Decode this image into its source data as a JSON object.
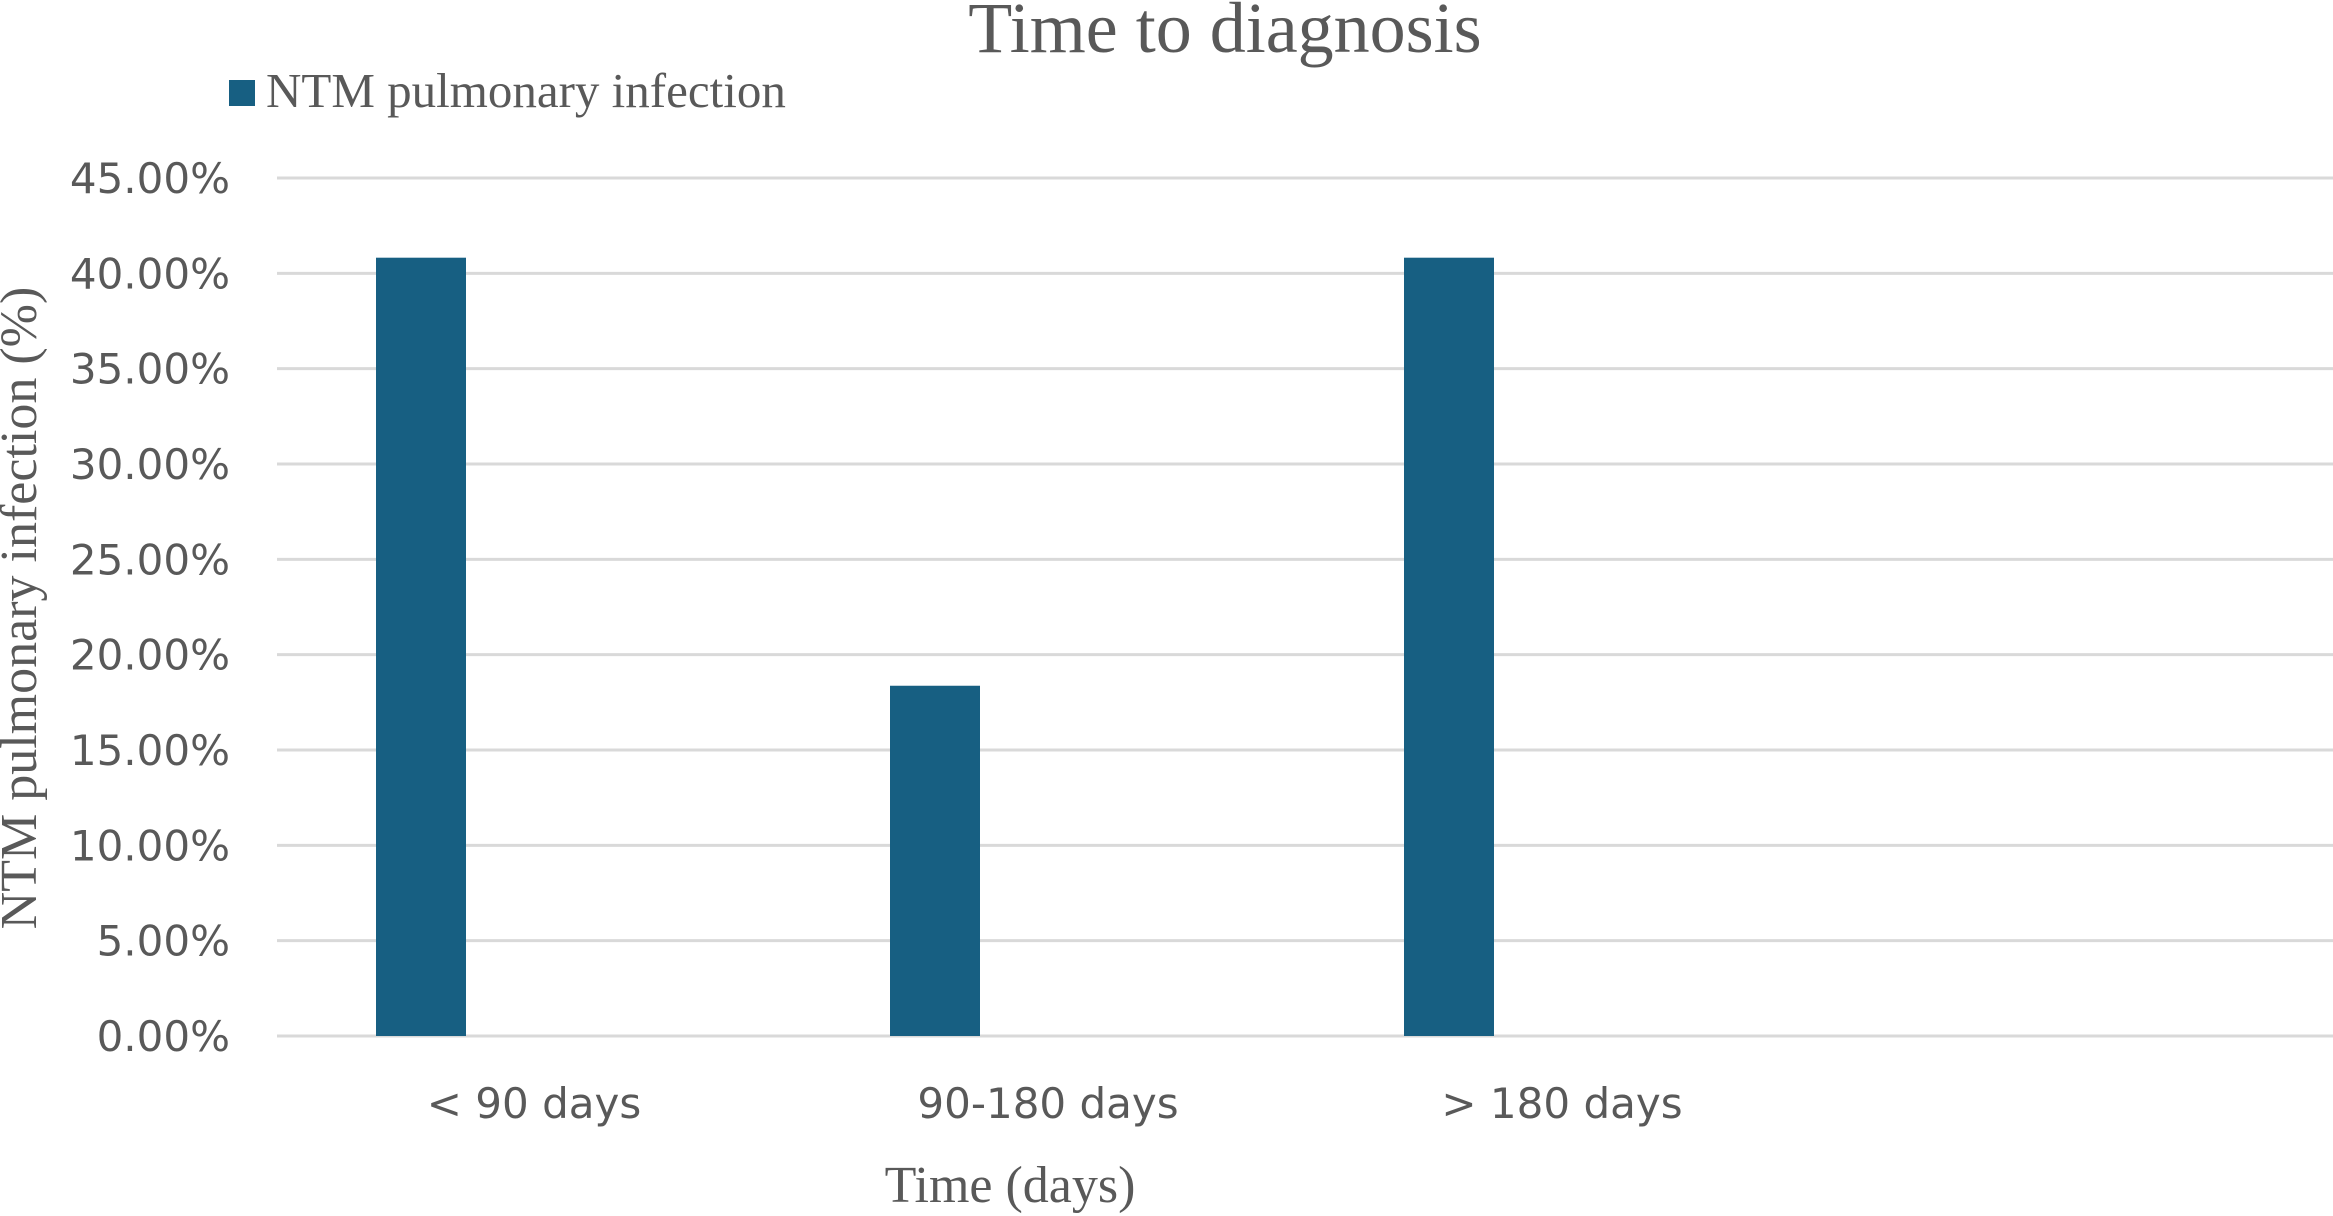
{
  "chart_data": {
    "type": "bar",
    "title": "Time to diagnosis",
    "xlabel": "Time (days)",
    "ylabel": "NTM pulmonary infection (%)",
    "categories": [
      "< 90 days",
      "90-180 days",
      "> 180 days"
    ],
    "series": [
      {
        "name": "NTM pulmonary infection",
        "values": [
          40.82,
          18.37,
          40.82
        ],
        "color": "#175F82"
      }
    ],
    "yticks": [
      "0.00%",
      "5.00%",
      "10.00%",
      "15.00%",
      "20.00%",
      "25.00%",
      "30.00%",
      "35.00%",
      "40.00%",
      "45.00%"
    ],
    "ylim": [
      0,
      45
    ],
    "grid": true,
    "legend_position": "top-left"
  }
}
